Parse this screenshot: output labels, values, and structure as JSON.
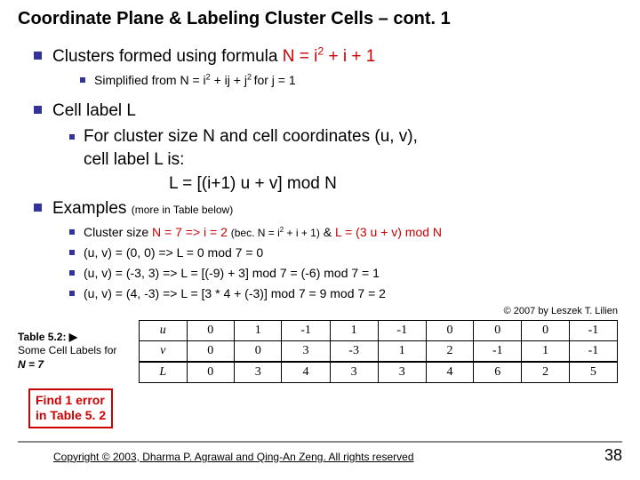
{
  "title": "Coordinate Plane & Labeling Cluster Cells – cont. 1",
  "b1": {
    "lead": "Clusters formed using formula ",
    "formula": "N = i",
    "formula_tail": " + i + 1",
    "sub_lead": "Simplified from N = i",
    "sub_mid": " + ij + j",
    "sub_tail": " for j = 1"
  },
  "b2": {
    "heading": "Cell label L",
    "line1a": "For cluster size N  and cell coordinates (u, v),",
    "line1b": "cell label L is:",
    "formula": "L = [(i+1) u + v] mod N"
  },
  "b3": {
    "heading": "Examples ",
    "paren": "(more in Table below)",
    "s1a": "Cluster size ",
    "s1b": "N = 7 => i = 2 ",
    "s1c": "(bec. N = i",
    "s1c2": " + i + 1)",
    "s1d": " & ",
    "s1e": "L = (3 u + v) mod N",
    "s2": "(u, v) = (0, 0) => L = 0 mod 7 = 0",
    "s3": "(u, v) = (-3, 3) => L = [(-9) + 3] mod 7 = (-6) mod 7 = 1",
    "s4": "(u, v) = (4, -3) => L = [3 * 4 + (-3)] mod 7 = 9 mod 7 = 2"
  },
  "cpr_small": "© 2007 by Leszek T. Lilien",
  "table": {
    "caption_l1": "Table 5.2: ▶",
    "caption_l2": "Some Cell Labels for",
    "caption_l3": "N = 7",
    "rows": [
      [
        "u",
        "0",
        "1",
        "-1",
        "1",
        "-1",
        "0",
        "0",
        "0",
        "-1"
      ],
      [
        "v",
        "0",
        "0",
        "3",
        "-3",
        "1",
        "2",
        "-1",
        "1",
        "-1"
      ],
      [
        "L",
        "0",
        "3",
        "4",
        "3",
        "3",
        "4",
        "6",
        "2",
        "5"
      ]
    ]
  },
  "find_error_l1": "Find 1 error",
  "find_error_l2": "in Table 5. 2",
  "footer_copy": "Copyright © 2003, Dharma P. Agrawal and Qing-An Zeng. All rights reserved",
  "page_num": "38",
  "colors": {
    "bullet": "#333399",
    "red": "#cc0000",
    "text": "#000000",
    "bg": "#ffffff"
  }
}
